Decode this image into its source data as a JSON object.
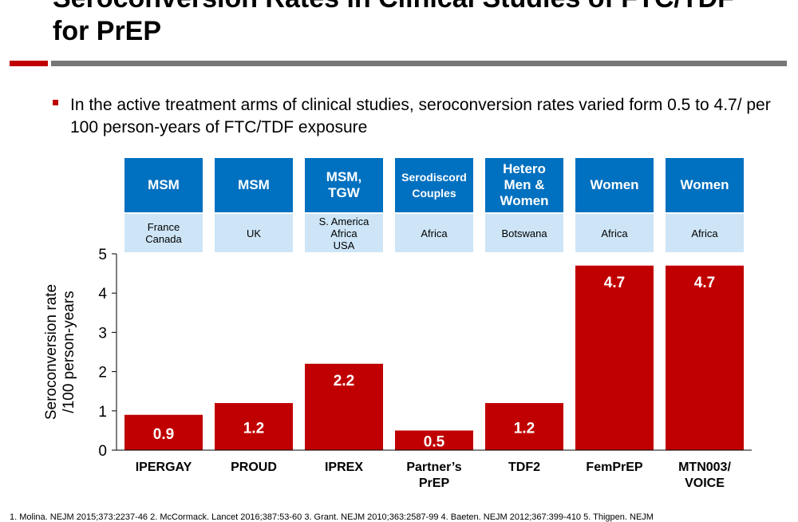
{
  "title": "Seroconversion Rates in Clinical Studies of FTC/TDF for PrEP",
  "bullet": "In the active treatment arms of clinical studies, seroconversion rates varied form 0.5 to 4.7/ per 100 person-years of FTC/TDF exposure",
  "footnote": "1. Molina. NEJM 2015;373:2237-46 2. McCormack. Lancet 2016;387:53-60 3. Grant. NEJM 2010;363:2587-99 4. Baeten. NEJM 2012;367:399-410 5. Thigpen. NEJM",
  "colors": {
    "bar": "#c00000",
    "header": "#0070c0",
    "region": "#cde5f7"
  },
  "chart_data": {
    "type": "bar",
    "categories": [
      "IPERGAY",
      "PROUD",
      "IPREX",
      "Partner’s PrEP",
      "TDF2",
      "FemPrEP",
      "MTN003/ VOICE"
    ],
    "populations": [
      "MSM",
      "MSM",
      "MSM, TGW",
      "Serodiscord Couples",
      "Hetero Men & Women",
      "Women",
      "Women"
    ],
    "regions": [
      "France Canada",
      "UK",
      "S. America Africa USA",
      "Africa",
      "Botswana",
      "Africa",
      "Africa"
    ],
    "values": [
      0.9,
      1.2,
      2.2,
      0.5,
      1.2,
      4.7,
      4.7
    ],
    "data_labels": [
      "0.9",
      "1.2",
      "2.2",
      "0.5",
      "1.2",
      "4.7",
      "4.7"
    ],
    "ylabel": [
      "Seroconversion rate",
      "/100 person-years"
    ],
    "ylim": [
      0,
      5
    ],
    "yticks": [
      "0",
      "1",
      "2",
      "3",
      "4",
      "5"
    ],
    "grid": false
  }
}
